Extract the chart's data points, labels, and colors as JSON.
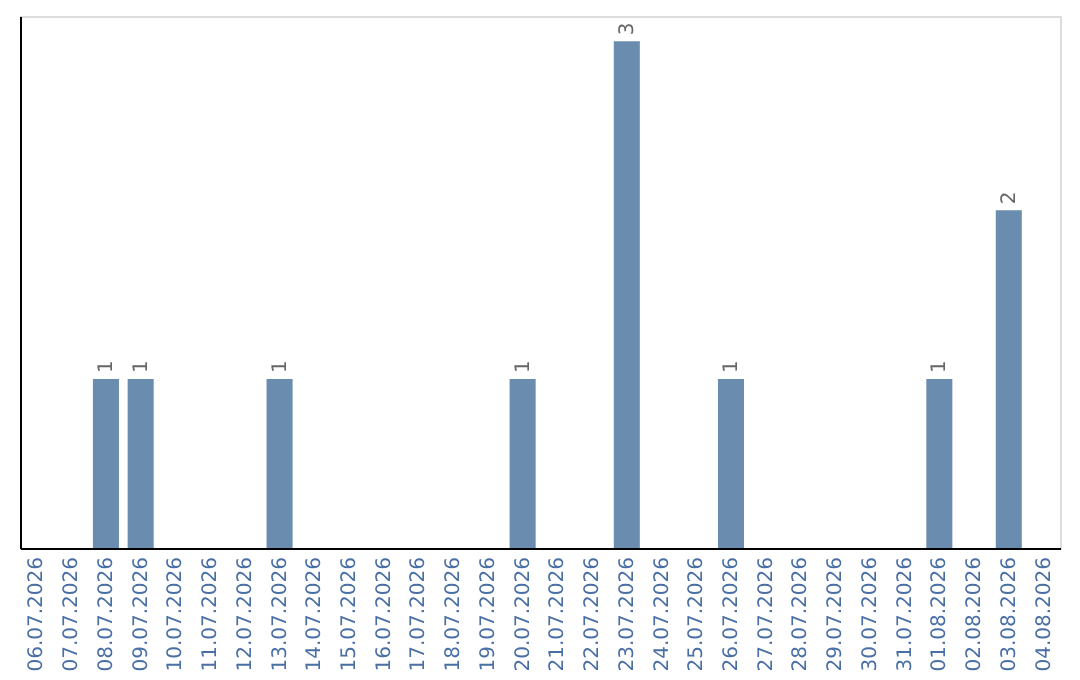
{
  "chart_data": {
    "type": "bar",
    "categories": [
      "06.07.2026",
      "07.07.2026",
      "08.07.2026",
      "09.07.2026",
      "10.07.2026",
      "11.07.2026",
      "12.07.2026",
      "13.07.2026",
      "14.07.2026",
      "15.07.2026",
      "16.07.2026",
      "17.07.2026",
      "18.07.2026",
      "19.07.2026",
      "20.07.2026",
      "21.07.2026",
      "22.07.2026",
      "23.07.2026",
      "24.07.2026",
      "25.07.2026",
      "26.07.2026",
      "27.07.2026",
      "28.07.2026",
      "29.07.2026",
      "30.07.2026",
      "31.07.2026",
      "01.08.2026",
      "02.08.2026",
      "03.08.2026",
      "04.08.2026"
    ],
    "values": [
      null,
      null,
      1,
      1,
      null,
      null,
      null,
      1,
      null,
      null,
      null,
      null,
      null,
      null,
      1,
      null,
      null,
      3,
      null,
      null,
      1,
      null,
      null,
      null,
      null,
      null,
      1,
      null,
      2,
      null
    ],
    "color": "#6a8caf",
    "ylim": [
      0,
      3.15
    ],
    "data_labels": true,
    "tick_labels": "x",
    "grid": false
  }
}
